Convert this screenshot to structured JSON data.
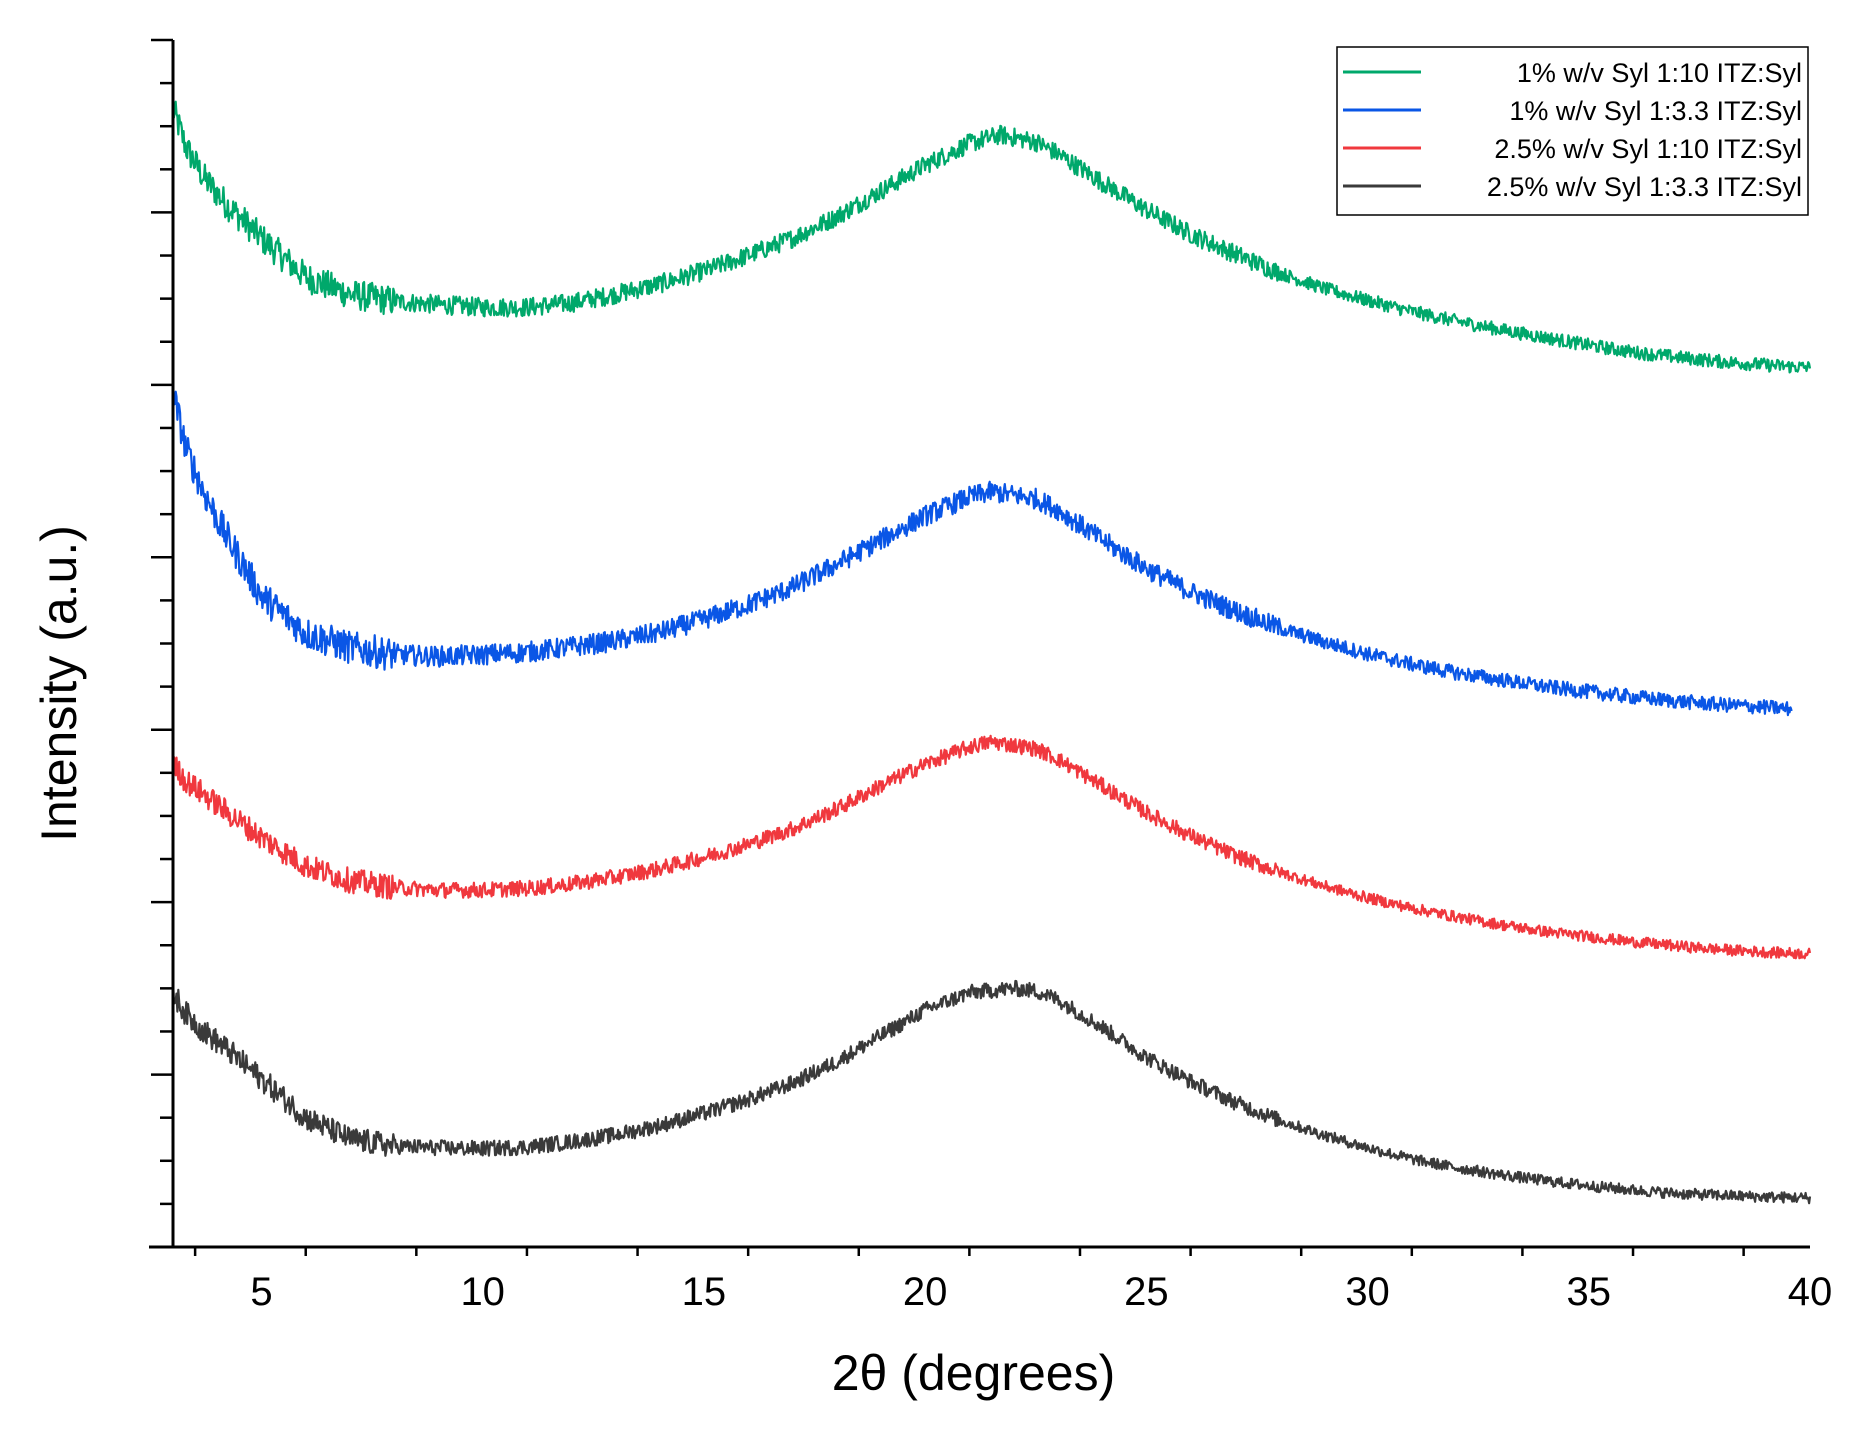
{
  "chart_data": {
    "type": "line",
    "title": "",
    "xlabel": "2θ (degrees)",
    "ylabel": "Intensity (a.u.)",
    "xlim": [
      3,
      40
    ],
    "ylim": [
      0,
      14
    ],
    "y_tick_labels": "none",
    "grid": false,
    "legend_position": "top-right",
    "x_ticks": [
      "5",
      "10",
      "15",
      "20",
      "25",
      "30",
      "35",
      "40"
    ],
    "series": [
      {
        "name": "1% w/v Syl 1:10 ITZ:Syl",
        "color": "#00a86b",
        "noise": 0.11,
        "x": [
          3,
          3.3,
          3.7,
          4.2,
          5,
          6,
          7,
          8,
          9,
          10,
          11,
          12,
          13,
          14,
          15,
          16,
          17,
          18,
          19,
          20,
          21,
          21.7,
          22.5,
          23,
          24,
          25,
          26,
          27,
          28,
          29,
          30,
          31,
          32,
          33,
          34,
          35,
          36,
          37,
          38,
          39,
          40
        ],
        "y": [
          13.2,
          12.75,
          12.4,
          12.1,
          11.7,
          11.25,
          11.05,
          10.97,
          10.93,
          10.9,
          10.9,
          10.95,
          11.05,
          11.17,
          11.32,
          11.5,
          11.7,
          11.95,
          12.25,
          12.55,
          12.8,
          12.9,
          12.82,
          12.68,
          12.35,
          12.03,
          11.75,
          11.52,
          11.3,
          11.12,
          10.98,
          10.85,
          10.74,
          10.64,
          10.55,
          10.46,
          10.38,
          10.32,
          10.27,
          10.23,
          10.2
        ]
      },
      {
        "name": "1% w/v Syl 1:3.3 ITZ:Syl",
        "color": "#0a56e6",
        "noise": 0.12,
        "x": [
          3,
          3.3,
          3.7,
          4.2,
          5,
          6,
          7,
          8,
          9,
          10,
          11,
          12,
          13,
          14,
          15,
          16,
          17,
          18,
          19,
          20,
          21,
          21.5,
          22.5,
          23,
          24,
          25,
          26,
          27,
          28,
          29,
          30,
          31,
          32,
          33,
          34,
          35,
          36,
          37,
          38,
          39,
          39.6
        ],
        "y": [
          9.9,
          9.25,
          8.75,
          8.25,
          7.55,
          7.12,
          6.95,
          6.87,
          6.85,
          6.87,
          6.9,
          6.96,
          7.03,
          7.13,
          7.28,
          7.45,
          7.65,
          7.92,
          8.2,
          8.48,
          8.7,
          8.76,
          8.68,
          8.55,
          8.2,
          7.87,
          7.6,
          7.38,
          7.18,
          7.02,
          6.88,
          6.76,
          6.66,
          6.58,
          6.5,
          6.44,
          6.38,
          6.33,
          6.29,
          6.26,
          6.24
        ]
      },
      {
        "name": "2.5% w/v Syl 1:10 ITZ:Syl",
        "color": "#f0383e",
        "noise": 0.09,
        "x": [
          3,
          3.3,
          3.7,
          4.2,
          5,
          6,
          7,
          8,
          9,
          10,
          11,
          12,
          13,
          14,
          15,
          16,
          17,
          18,
          19,
          20,
          21,
          21.5,
          22.5,
          23,
          24,
          25,
          26,
          27,
          28,
          29,
          30,
          31,
          32,
          33,
          34,
          35,
          36,
          37,
          38,
          39,
          40
        ],
        "y": [
          5.6,
          5.4,
          5.25,
          5.05,
          4.75,
          4.42,
          4.25,
          4.17,
          4.14,
          4.14,
          4.16,
          4.21,
          4.29,
          4.39,
          4.52,
          4.67,
          4.85,
          5.08,
          5.35,
          5.6,
          5.8,
          5.86,
          5.78,
          5.66,
          5.35,
          5.04,
          4.77,
          4.54,
          4.35,
          4.19,
          4.05,
          3.93,
          3.83,
          3.74,
          3.66,
          3.6,
          3.54,
          3.49,
          3.45,
          3.42,
          3.4
        ]
      },
      {
        "name": "2.5% w/v Syl 1:3.3 ITZ:Syl",
        "color": "#3a3a3a",
        "noise": 0.09,
        "x": [
          3,
          3.3,
          3.7,
          4.2,
          5,
          6,
          7,
          8,
          9,
          10,
          11,
          12,
          13,
          14,
          15,
          16,
          17,
          18,
          19,
          20,
          21,
          22,
          22.5,
          23,
          24,
          25,
          26,
          27,
          28,
          29,
          30,
          31,
          32,
          33,
          34,
          35,
          36,
          37,
          38,
          39,
          40
        ],
        "y": [
          2.95,
          2.7,
          2.5,
          2.3,
          1.95,
          1.5,
          1.25,
          1.17,
          1.15,
          1.14,
          1.16,
          1.22,
          1.3,
          1.41,
          1.55,
          1.71,
          1.9,
          2.15,
          2.45,
          2.75,
          2.95,
          3.0,
          2.97,
          2.87,
          2.55,
          2.2,
          1.92,
          1.68,
          1.47,
          1.3,
          1.15,
          1.02,
          0.92,
          0.84,
          0.77,
          0.71,
          0.66,
          0.62,
          0.6,
          0.58,
          0.57
        ]
      }
    ]
  }
}
